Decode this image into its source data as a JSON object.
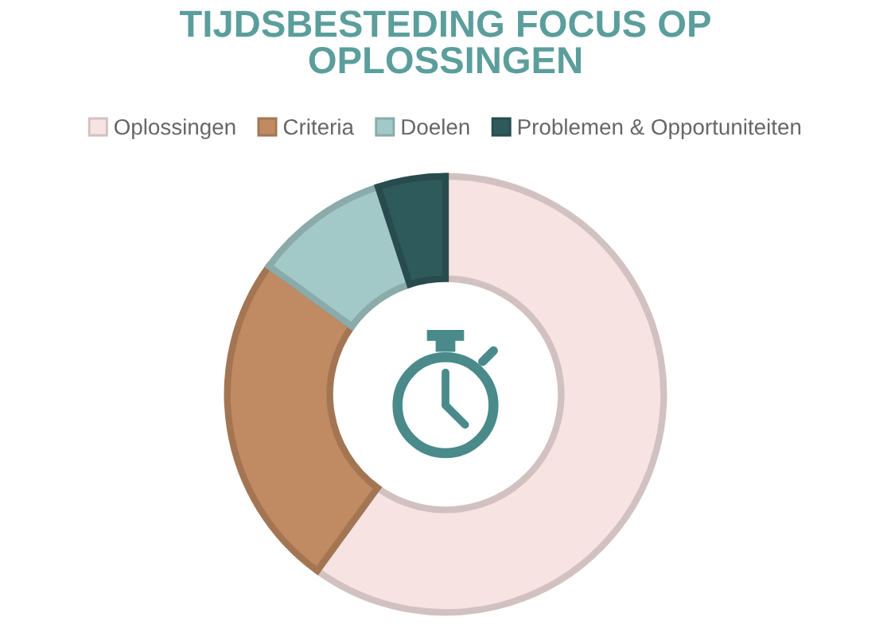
{
  "chart_data": {
    "type": "donut",
    "title": "TIJDSBESTEDING FOCUS OP\nOPLOSSINGEN",
    "categories": [
      "Oplossingen",
      "Criteria",
      "Doelen",
      "Problemen & Opportuniteiten"
    ],
    "values": [
      60,
      25,
      10,
      5
    ],
    "colors": [
      "#f6e3e2",
      "#c08a62",
      "#a3c8c8",
      "#2f5a5b"
    ],
    "legend": "top"
  }
}
